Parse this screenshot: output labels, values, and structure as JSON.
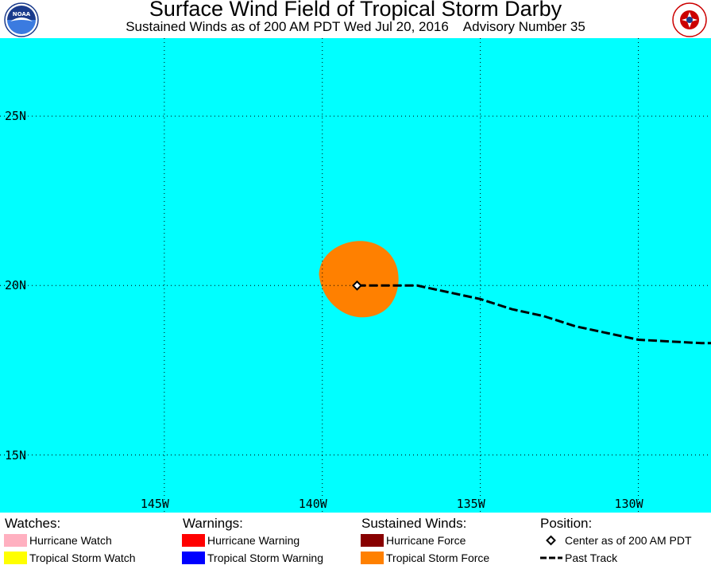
{
  "header": {
    "title": "Surface Wind Field of Tropical Storm Darby",
    "subtitle": "Sustained Winds as of 200 AM PDT Wed Jul 20, 2016    Advisory Number 35",
    "logo_left_text": "NOAA",
    "logo_right_text": "NATIONAL WEATHER SERVICE"
  },
  "map": {
    "ocean_color": "#00ffff",
    "lat_labels": [
      "25N",
      "20N",
      "15N"
    ],
    "lon_labels": [
      "145W",
      "140W",
      "135W",
      "130W"
    ],
    "lat_values": [
      25,
      20,
      15
    ],
    "lon_values": [
      145,
      140,
      135,
      130
    ],
    "extent": {
      "lon_west": 150.2,
      "lon_east": 127.7,
      "lat_north": 27.3,
      "lat_south": 13.3
    },
    "storm_center": {
      "lat": 20.0,
      "lon": 138.9
    },
    "tropical_storm_force_color": "#ff8000",
    "past_track": [
      [
        138.9,
        20.0
      ],
      [
        138.0,
        20.0
      ],
      [
        137.0,
        20.0
      ],
      [
        136.0,
        19.8
      ],
      [
        135.0,
        19.6
      ],
      [
        134.0,
        19.3
      ],
      [
        133.0,
        19.1
      ],
      [
        132.0,
        18.8
      ],
      [
        131.0,
        18.6
      ],
      [
        130.0,
        18.4
      ],
      [
        129.0,
        18.35
      ],
      [
        128.0,
        18.3
      ],
      [
        127.7,
        18.3
      ]
    ]
  },
  "legend": {
    "watches": {
      "heading": "Watches:",
      "items": [
        {
          "label": "Hurricane Watch",
          "color": "#ffb0c0"
        },
        {
          "label": "Tropical Storm Watch",
          "color": "#ffff00"
        }
      ]
    },
    "warnings": {
      "heading": "Warnings:",
      "items": [
        {
          "label": "Hurricane Warning",
          "color": "#ff0000"
        },
        {
          "label": "Tropical Storm Warning",
          "color": "#0000ff"
        }
      ]
    },
    "winds": {
      "heading": "Sustained Winds:",
      "items": [
        {
          "label": "Hurricane Force",
          "color": "#880000"
        },
        {
          "label": "Tropical Storm Force",
          "color": "#ff8000"
        }
      ]
    },
    "position": {
      "heading": "Position:",
      "items": [
        {
          "label": "Center as of 200 AM PDT",
          "icon": "diamond-icon"
        },
        {
          "label": "Past Track",
          "icon": "dashed-line-icon"
        }
      ]
    }
  }
}
